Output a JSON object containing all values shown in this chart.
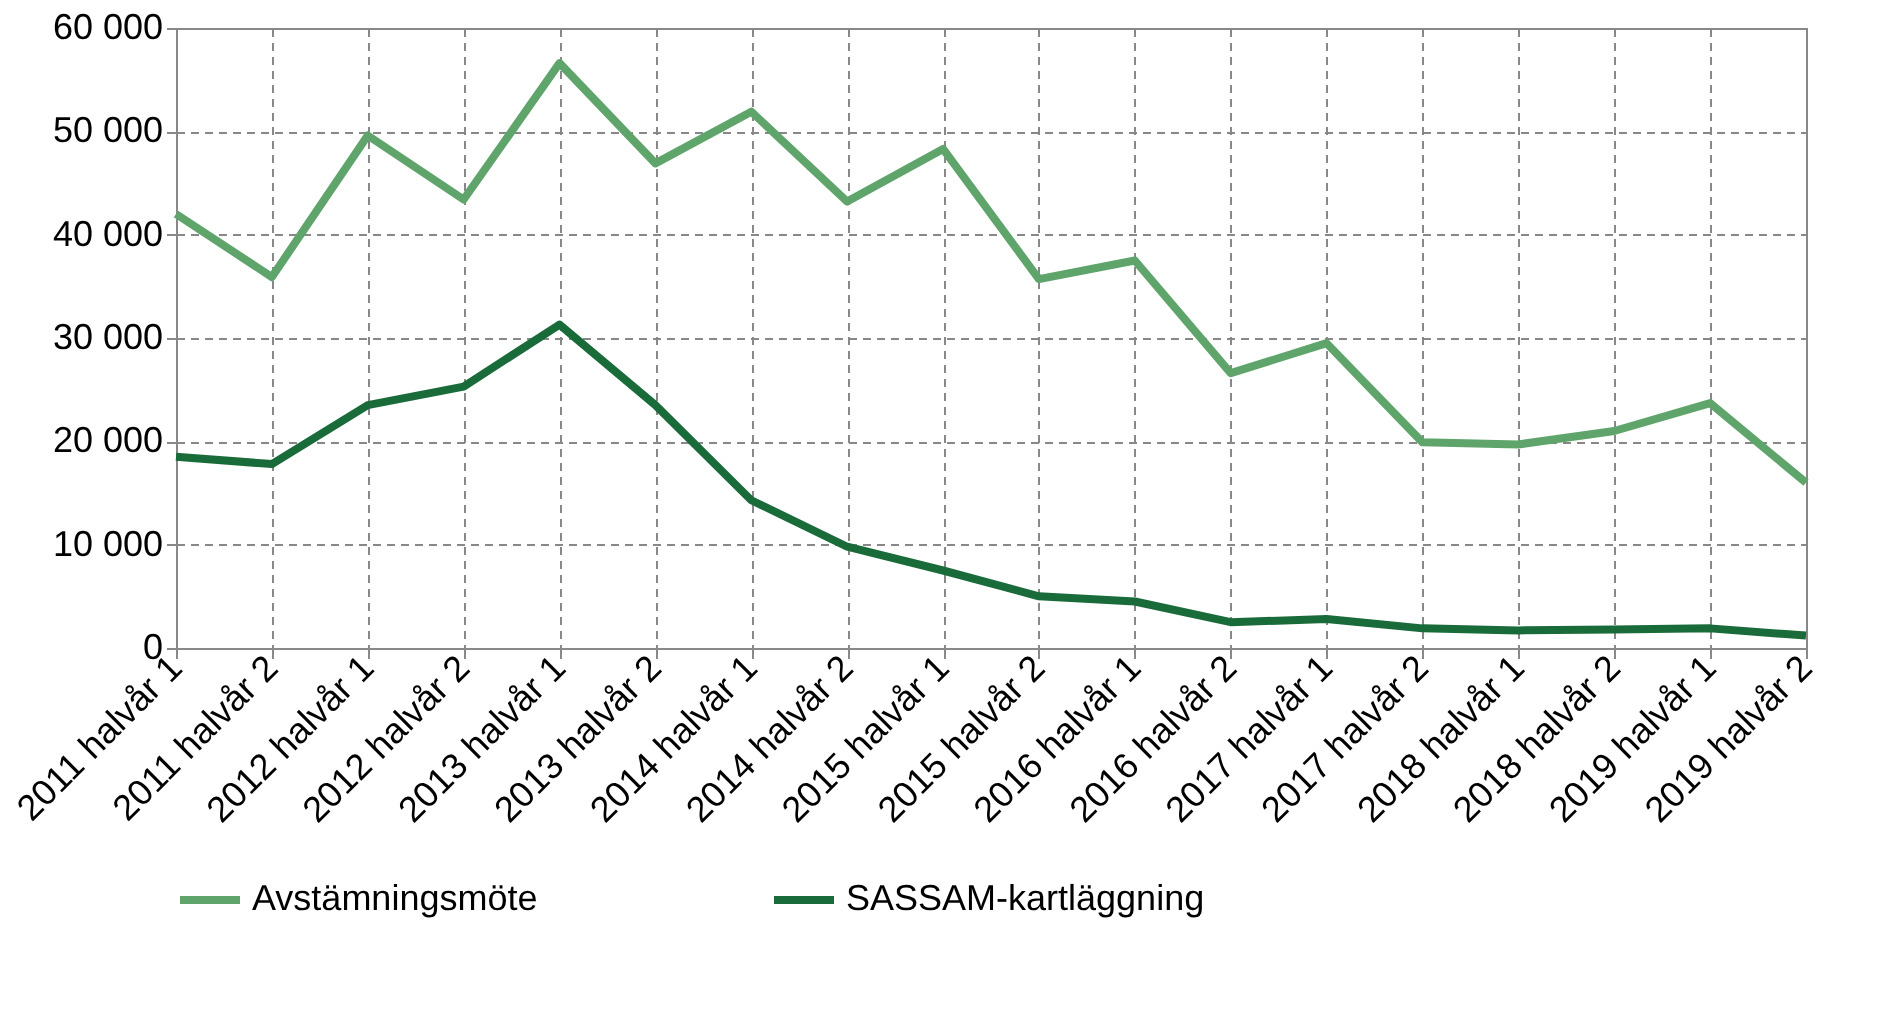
{
  "chart_data": {
    "type": "line",
    "categories": [
      "2011 halvår 1",
      "2011 halvår 2",
      "2012 halvår 1",
      "2012 halvår 2",
      "2013 halvår 1",
      "2013 halvår 2",
      "2014 halvår 1",
      "2014 halvår 2",
      "2015 halvår 1",
      "2015 halvår 2",
      "2016 halvår 1",
      "2016 halvår 2",
      "2017 halvår 1",
      "2017 halvår 2",
      "2018 halvår 1",
      "2018 halvår 2",
      "2019 halvår 1",
      "2019 halvår 2"
    ],
    "series": [
      {
        "name": "Avstämningsmöte",
        "color": "#5fa56b",
        "values": [
          42000,
          35900,
          49600,
          43400,
          56600,
          46900,
          51900,
          43200,
          48300,
          35700,
          37500,
          26600,
          29500,
          19900,
          19700,
          21000,
          23700,
          16000
        ]
      },
      {
        "name": "SASSAM-kartläggning",
        "color": "#1a6b3a",
        "values": [
          18500,
          17800,
          23500,
          25300,
          31300,
          23500,
          14300,
          9800,
          7500,
          5000,
          4500,
          2500,
          2800,
          1900,
          1700,
          1800,
          1900,
          1200
        ]
      }
    ],
    "ylim": [
      0,
      60000
    ],
    "yticks": [
      {
        "value": 0,
        "label": "0"
      },
      {
        "value": 10000,
        "label": "10 000"
      },
      {
        "value": 20000,
        "label": "20 000"
      },
      {
        "value": 30000,
        "label": "30 000"
      },
      {
        "value": 40000,
        "label": "40 000"
      },
      {
        "value": 50000,
        "label": "50 000"
      },
      {
        "value": 60000,
        "label": "60 000"
      }
    ],
    "grid": true,
    "legend": "bottom",
    "marker": "none",
    "line_style": "solid"
  }
}
